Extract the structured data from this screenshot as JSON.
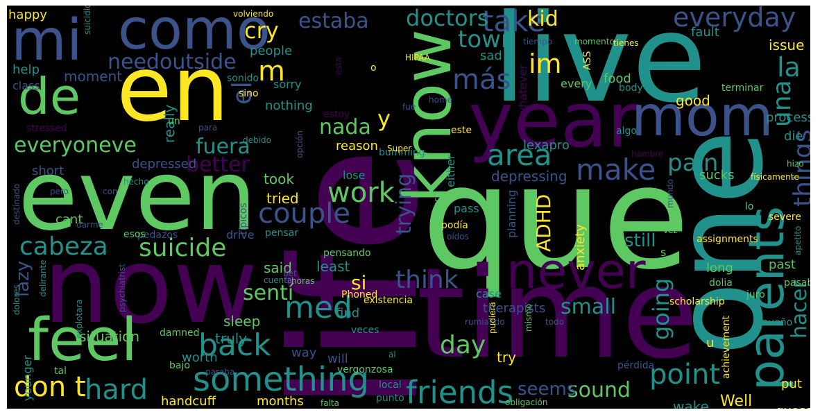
{
  "background_color": "#000000",
  "palette": [
    "#440154",
    "#3b528b",
    "#21918c",
    "#5ec962",
    "#fde725"
  ],
  "words": [
    {
      "text": "life"
    },
    {
      "text": "que"
    },
    {
      "text": "live"
    },
    {
      "text": "time"
    },
    {
      "text": "now"
    },
    {
      "text": "even"
    },
    {
      "text": "one"
    },
    {
      "text": "en"
    },
    {
      "text": "year"
    },
    {
      "text": "know"
    },
    {
      "text": "mom"
    },
    {
      "text": "parents"
    },
    {
      "text": "como"
    },
    {
      "text": "mi"
    },
    {
      "text": "feel"
    },
    {
      "text": "never"
    },
    {
      "text": "de"
    },
    {
      "text": "take"
    },
    {
      "text": "something"
    },
    {
      "text": "friends"
    },
    {
      "text": "everyday"
    },
    {
      "text": "area"
    },
    {
      "text": "make"
    },
    {
      "text": "work"
    },
    {
      "text": "couple"
    },
    {
      "text": "back"
    },
    {
      "text": "point"
    },
    {
      "text": "cabeza"
    },
    {
      "text": "suicide"
    },
    {
      "text": "med"
    },
    {
      "text": "think"
    },
    {
      "text": "don t"
    },
    {
      "text": "hard"
    },
    {
      "text": "things"
    },
    {
      "text": "doctors"
    },
    {
      "text": "estaba"
    },
    {
      "text": "cry"
    },
    {
      "text": "town"
    },
    {
      "text": "kid"
    },
    {
      "text": "im"
    },
    {
      "text": "más"
    },
    {
      "text": "una"
    },
    {
      "text": "la"
    },
    {
      "text": "el"
    },
    {
      "text": "m"
    },
    {
      "text": "needoutside"
    },
    {
      "text": "everyoneve"
    },
    {
      "text": "fuera"
    },
    {
      "text": "nada"
    },
    {
      "text": "y"
    },
    {
      "text": "better"
    },
    {
      "text": "pain"
    },
    {
      "text": "day"
    },
    {
      "text": "small"
    },
    {
      "text": "going"
    },
    {
      "text": "hacer"
    },
    {
      "text": "trying"
    },
    {
      "text": "ADHD"
    },
    {
      "text": "sound"
    },
    {
      "text": "sentí"
    },
    {
      "text": "si"
    },
    {
      "text": "seems"
    },
    {
      "text": "depressing"
    },
    {
      "text": "therapists"
    },
    {
      "text": "still"
    },
    {
      "text": "lazy"
    },
    {
      "text": "Well"
    },
    {
      "text": "handcuff"
    },
    {
      "text": "months"
    },
    {
      "text": "sucks"
    },
    {
      "text": "least"
    },
    {
      "text": "said"
    },
    {
      "text": "took"
    },
    {
      "text": "tried"
    },
    {
      "text": "depressed"
    },
    {
      "text": "short"
    },
    {
      "text": "reason"
    },
    {
      "text": "lexapro"
    },
    {
      "text": "anxiety"
    },
    {
      "text": "happy"
    },
    {
      "text": "people"
    },
    {
      "text": "moment"
    },
    {
      "text": "help"
    },
    {
      "text": "class"
    },
    {
      "text": "sorry"
    },
    {
      "text": "nothing"
    },
    {
      "text": "really"
    },
    {
      "text": "stressed"
    },
    {
      "text": "sad"
    },
    {
      "text": "whatever"
    },
    {
      "text": "every"
    },
    {
      "text": "food"
    },
    {
      "text": "good"
    },
    {
      "text": "fault"
    },
    {
      "text": "issue"
    },
    {
      "text": "process"
    },
    {
      "text": "die"
    },
    {
      "text": "lose"
    },
    {
      "text": "either"
    },
    {
      "text": "pass"
    },
    {
      "text": "planning"
    },
    {
      "text": "case"
    },
    {
      "text": "find"
    },
    {
      "text": "sleep"
    },
    {
      "text": "truly"
    },
    {
      "text": "situation"
    },
    {
      "text": "younger"
    },
    {
      "text": "worth"
    },
    {
      "text": "way"
    },
    {
      "text": "will"
    },
    {
      "text": "try"
    },
    {
      "text": "wake"
    },
    {
      "text": "guess"
    },
    {
      "text": "put"
    },
    {
      "text": "past"
    },
    {
      "text": "long"
    },
    {
      "text": "scholarship"
    },
    {
      "text": "achievement"
    },
    {
      "text": "assignments"
    },
    {
      "text": "severe"
    },
    {
      "text": "body"
    },
    {
      "text": "existencia"
    },
    {
      "text": "cant"
    },
    {
      "text": "drive"
    },
    {
      "text": "pedazos"
    },
    {
      "text": "esos"
    },
    {
      "text": "darme"
    },
    {
      "text": "con"
    },
    {
      "text": "hecho"
    },
    {
      "text": "destinado"
    },
    {
      "text": "pensando"
    },
    {
      "text": "pensar"
    },
    {
      "text": "típicos"
    },
    {
      "text": "sino"
    },
    {
      "text": "sonido"
    },
    {
      "text": "estoy"
    },
    {
      "text": "bumming"
    },
    {
      "text": "fue"
    },
    {
      "text": "home"
    },
    {
      "text": "este"
    },
    {
      "text": "algo"
    },
    {
      "text": "hambre"
    },
    {
      "text": "físicamente"
    },
    {
      "text": "hizo"
    },
    {
      "text": "mundo"
    },
    {
      "text": "lo"
    },
    {
      "text": "apetito"
    },
    {
      "text": "vez"
    },
    {
      "text": "pasaba"
    },
    {
      "text": "dolia"
    },
    {
      "text": "juro"
    },
    {
      "text": "sueño"
    },
    {
      "text": "pérdida"
    },
    {
      "text": "mismo"
    },
    {
      "text": "todo"
    },
    {
      "text": "rumiando"
    },
    {
      "text": "podía"
    },
    {
      "text": "oídos"
    },
    {
      "text": "peor"
    },
    {
      "text": "pudiera"
    },
    {
      "text": "obligación"
    },
    {
      "text": "falta"
    },
    {
      "text": "punto"
    },
    {
      "text": "local"
    },
    {
      "text": "al"
    },
    {
      "text": "vergonzosa"
    },
    {
      "text": "veces"
    },
    {
      "text": "paraba"
    },
    {
      "text": "bajo"
    },
    {
      "text": "tal"
    },
    {
      "text": "damned"
    },
    {
      "text": "dolores"
    },
    {
      "text": "psychiatrist"
    },
    {
      "text": "explotara"
    },
    {
      "text": "delirante"
    },
    {
      "text": "cuenta"
    },
    {
      "text": "horas"
    },
    {
      "text": "Phoned"
    },
    {
      "text": "bet"
    },
    {
      "text": "volviendo"
    },
    {
      "text": "suicidio"
    },
    {
      "text": "HIPAA"
    },
    {
      "text": "tiempo"
    },
    {
      "text": "momento"
    },
    {
      "text": "tienes"
    },
    {
      "text": "terminar"
    },
    {
      "text": "pensamiento"
    },
    {
      "text": "ASS"
    },
    {
      "text": "opción"
    },
    {
      "text": "Super"
    },
    {
      "text": "debido"
    },
    {
      "text": "pero"
    },
    {
      "text": "para"
    },
    {
      "text": "un"
    },
    {
      "text": "o"
    },
    {
      "text": "esta"
    },
    {
      "text": "u"
    },
    {
      "text": "s"
    }
  ]
}
